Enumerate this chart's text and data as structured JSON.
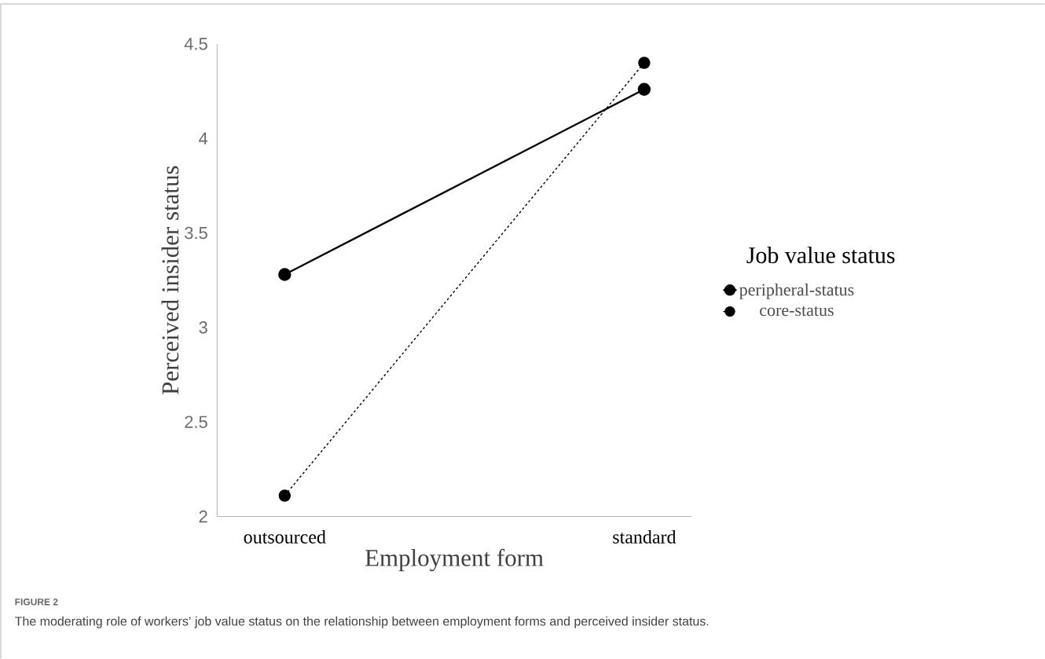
{
  "chart_data": {
    "type": "line",
    "xlabel": "Employment form",
    "ylabel": "Perceived insider status",
    "legend_title": "Job value status",
    "categories": [
      "outsourced",
      "standard"
    ],
    "series": [
      {
        "name": "peripheral-status",
        "color": "#000000",
        "values": [
          3.28,
          4.26
        ],
        "line_style": "solid"
      },
      {
        "name": "core-status",
        "color": "#000000",
        "values": [
          2.11,
          4.4
        ],
        "line_style": "dashed"
      }
    ],
    "ylim": [
      2,
      4.5
    ],
    "yticks": [
      2,
      2.5,
      3,
      3.5,
      4,
      4.5
    ],
    "grid": false,
    "legend": "right",
    "marker": "circle",
    "annotations": [
      "FIGURE 2",
      "The moderating role of workers’ job value status on the relationship between employment forms and perceived insider status."
    ]
  }
}
